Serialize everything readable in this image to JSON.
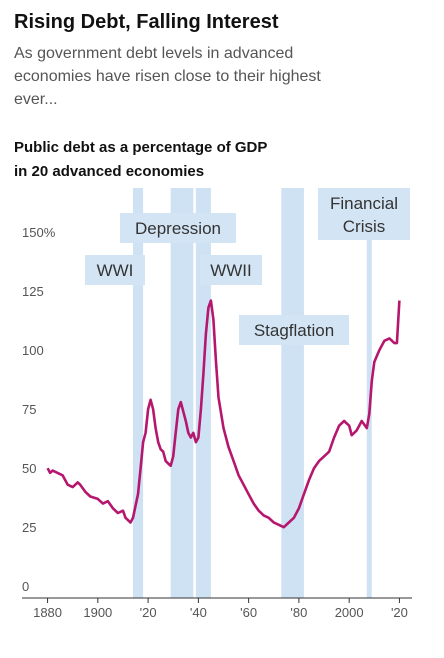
{
  "chart_data": {
    "type": "line",
    "title": "Rising Debt, Falling Interest",
    "subtitle": [
      "As government debt levels in advanced",
      "economies have risen close to their highest",
      "ever..."
    ],
    "chart_label": [
      "Public debt as a percentage of GDP",
      "in 20 advanced economies"
    ],
    "xlim": [
      1875,
      2025
    ],
    "xticks": [
      {
        "value": 1880,
        "label": "1880"
      },
      {
        "value": 1900,
        "label": "1900"
      },
      {
        "value": 1920,
        "label": "'20"
      },
      {
        "value": 1940,
        "label": "'40"
      },
      {
        "value": 1960,
        "label": "'60"
      },
      {
        "value": 1980,
        "label": "'80"
      },
      {
        "value": 2000,
        "label": "2000"
      },
      {
        "value": 2020,
        "label": "'20"
      }
    ],
    "ylim": [
      0,
      150
    ],
    "yticks": [
      0,
      25,
      50,
      75,
      100,
      125,
      {
        "value": 150,
        "label": "150%"
      }
    ],
    "grid": false,
    "periods": [
      {
        "label": "WWI",
        "start": 1914,
        "end": 1918
      },
      {
        "label": "Depression",
        "start": 1929,
        "end": 1938
      },
      {
        "label": "WWII",
        "start": 1939,
        "end": 1945
      },
      {
        "label": "Stagflation",
        "start": 1973,
        "end": 1982
      },
      {
        "label": "Financial Crisis",
        "start": 2007,
        "end": 2009
      }
    ],
    "series": [
      {
        "name": "Public debt",
        "color": "#b5176e",
        "x": [
          1880,
          1881,
          1882,
          1884,
          1886,
          1888,
          1890,
          1892,
          1893,
          1895,
          1897,
          1900,
          1902,
          1904,
          1906,
          1908,
          1910,
          1911,
          1913,
          1914,
          1916,
          1917,
          1918,
          1919,
          1920,
          1921,
          1922,
          1923,
          1924,
          1925,
          1926,
          1927,
          1928,
          1929,
          1930,
          1931,
          1932,
          1933,
          1934,
          1935,
          1936,
          1937,
          1938,
          1939,
          1940,
          1941,
          1942,
          1943,
          1944,
          1945,
          1946,
          1947,
          1948,
          1950,
          1952,
          1954,
          1956,
          1958,
          1960,
          1962,
          1964,
          1966,
          1968,
          1970,
          1972,
          1974,
          1976,
          1978,
          1980,
          1982,
          1984,
          1986,
          1988,
          1990,
          1992,
          1994,
          1996,
          1998,
          2000,
          2001,
          2003,
          2005,
          2007,
          2008,
          2009,
          2010,
          2012,
          2014,
          2016,
          2018,
          2019,
          2020
        ],
        "values": [
          55,
          53,
          54,
          53,
          52,
          48,
          47,
          49,
          48,
          45,
          43,
          42,
          40,
          41,
          38,
          36,
          37,
          34,
          32,
          34,
          44,
          55,
          66,
          70,
          80,
          84,
          80,
          72,
          66,
          63,
          62,
          58,
          57,
          56,
          60,
          70,
          80,
          83,
          79,
          75,
          70,
          68,
          70,
          66,
          68,
          80,
          95,
          112,
          123,
          126,
          118,
          100,
          85,
          72,
          64,
          58,
          52,
          48,
          44,
          40,
          37,
          35,
          34,
          32,
          31,
          30,
          32,
          34,
          38,
          44,
          50,
          55,
          58,
          60,
          62,
          68,
          73,
          75,
          73,
          69,
          71,
          75,
          72,
          78,
          92,
          100,
          105,
          109,
          110,
          108,
          108,
          126
        ]
      }
    ]
  }
}
